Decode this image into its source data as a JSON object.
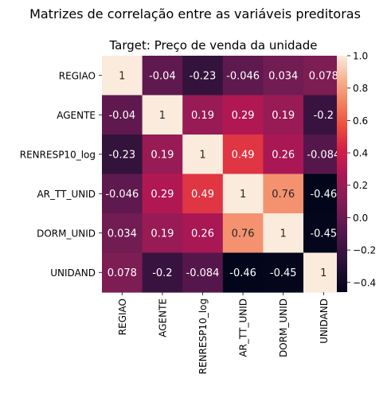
{
  "chart_data": {
    "type": "heatmap",
    "suptitle": "Matrizes de correlação entre as variáveis preditoras",
    "title": "Target: Preço de venda da unidade",
    "row_labels": [
      "REGIAO",
      "AGENTE",
      "RENRESP10_log",
      "AR_TT_UNID",
      "DORM_UNID",
      "UNIDAND"
    ],
    "col_labels": [
      "REGIAO",
      "AGENTE",
      "RENRESP10_log",
      "AR_TT_UNID",
      "DORM_UNID",
      "UNIDAND"
    ],
    "values": [
      [
        1,
        -0.04,
        -0.23,
        -0.046,
        0.034,
        0.078
      ],
      [
        -0.04,
        1,
        0.19,
        0.29,
        0.19,
        -0.2
      ],
      [
        -0.23,
        0.19,
        1,
        0.49,
        0.26,
        -0.084
      ],
      [
        -0.046,
        0.29,
        0.49,
        1,
        0.76,
        -0.46
      ],
      [
        0.034,
        0.19,
        0.26,
        0.76,
        1,
        -0.45
      ],
      [
        0.078,
        -0.2,
        -0.084,
        -0.46,
        -0.45,
        1
      ]
    ],
    "annotations": [
      [
        "1",
        "-0.04",
        "-0.23",
        "-0.046",
        "0.034",
        "0.078"
      ],
      [
        "-0.04",
        "1",
        "0.19",
        "0.29",
        "0.19",
        "-0.2"
      ],
      [
        "-0.23",
        "0.19",
        "1",
        "0.49",
        "0.26",
        "-0.084"
      ],
      [
        "-0.046",
        "0.29",
        "0.49",
        "1",
        "0.76",
        "-0.46"
      ],
      [
        "0.034",
        "0.19",
        "0.26",
        "0.76",
        "1",
        "-0.45"
      ],
      [
        "0.078",
        "-0.2",
        "-0.084",
        "-0.46",
        "-0.45",
        "1"
      ]
    ],
    "colorbar": {
      "range": [
        -0.46,
        1
      ],
      "ticks": [
        -0.4,
        -0.2,
        0.0,
        0.2,
        0.4,
        0.6,
        0.8,
        1.0
      ],
      "tick_labels": [
        "−0.4",
        "−0.2",
        "0.0",
        "0.2",
        "0.4",
        "0.6",
        "0.8",
        "1.0"
      ]
    },
    "colormap": "rocket"
  }
}
